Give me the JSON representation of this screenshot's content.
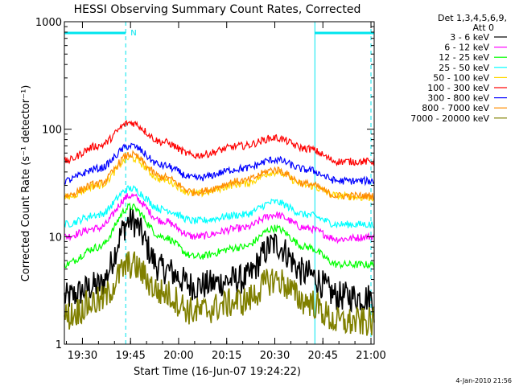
{
  "chart_data": {
    "type": "line",
    "title": "HESSI Observing Summary Count Rates, Corrected",
    "xlabel": "Start Time (16-Jun-07 19:24:22)",
    "ylabel": "Corrected Count Rate (s⁻¹ detector⁻¹)",
    "ylim": [
      1,
      1000
    ],
    "yscale": "log",
    "xlim": [
      "19:24:22",
      "21:01:00"
    ],
    "x_ticks": [
      "19:30",
      "19:45",
      "20:00",
      "20:15",
      "20:30",
      "20:45",
      "21:00"
    ],
    "y_ticks": [
      "1",
      "10",
      "100",
      "1000"
    ],
    "legend_header": [
      "Det 1,3,4,5,6,9,",
      "Att 0"
    ],
    "legend_position": "right",
    "timestamp": "4-Jan-2010 21:56",
    "night_marker_label": "N",
    "night_intervals": [
      [
        "19:24:22",
        "19:43:30"
      ],
      [
        "20:42:30",
        "21:01:00"
      ]
    ],
    "vertical_markers": [
      "19:24:22",
      "19:43:30",
      "20:42:30",
      "21:00:00"
    ],
    "series": [
      {
        "name": "3 - 6 keV",
        "color": "#000000",
        "points": [
          [
            "19:24",
            "2.7"
          ],
          [
            "19:35",
            "3.5"
          ],
          [
            "19:45",
            "14"
          ],
          [
            "19:55",
            "5"
          ],
          [
            "20:05",
            "3.5"
          ],
          [
            "20:20",
            "4"
          ],
          [
            "20:30",
            "8.5"
          ],
          [
            "20:40",
            "4.5"
          ],
          [
            "20:50",
            "2.8"
          ],
          [
            "21:00",
            "2.7"
          ]
        ]
      },
      {
        "name": "6 - 12 keV",
        "color": "#ff00ff",
        "points": [
          [
            "19:24",
            "10"
          ],
          [
            "19:35",
            "12"
          ],
          [
            "19:45",
            "24"
          ],
          [
            "19:55",
            "14"
          ],
          [
            "20:05",
            "10"
          ],
          [
            "20:20",
            "12"
          ],
          [
            "20:30",
            "16"
          ],
          [
            "20:40",
            "12"
          ],
          [
            "20:50",
            "9.5"
          ],
          [
            "21:00",
            "10"
          ]
        ]
      },
      {
        "name": "12 - 25 keV",
        "color": "#00ff00",
        "points": [
          [
            "19:24",
            "5.5"
          ],
          [
            "19:35",
            "8"
          ],
          [
            "19:45",
            "19"
          ],
          [
            "19:55",
            "10"
          ],
          [
            "20:05",
            "6.5"
          ],
          [
            "20:20",
            "8"
          ],
          [
            "20:30",
            "12"
          ],
          [
            "20:40",
            "8"
          ],
          [
            "20:50",
            "5.5"
          ],
          [
            "21:00",
            "5.5"
          ]
        ]
      },
      {
        "name": "25 - 50 keV",
        "color": "#00ffff",
        "points": [
          [
            "19:24",
            "13"
          ],
          [
            "19:35",
            "16"
          ],
          [
            "19:45",
            "28"
          ],
          [
            "19:55",
            "18"
          ],
          [
            "20:05",
            "14"
          ],
          [
            "20:20",
            "16"
          ],
          [
            "20:30",
            "21"
          ],
          [
            "20:40",
            "16"
          ],
          [
            "20:50",
            "13"
          ],
          [
            "21:00",
            "13"
          ]
        ]
      },
      {
        "name": "50 - 100 keV",
        "color": "#ffd700",
        "points": [
          [
            "19:24",
            "23"
          ],
          [
            "19:35",
            "30"
          ],
          [
            "19:45",
            "54"
          ],
          [
            "19:55",
            "34"
          ],
          [
            "20:05",
            "25"
          ],
          [
            "20:20",
            "31"
          ],
          [
            "20:30",
            "40"
          ],
          [
            "20:40",
            "30"
          ],
          [
            "20:50",
            "24"
          ],
          [
            "21:00",
            "23"
          ]
        ]
      },
      {
        "name": "100 - 300 keV",
        "color": "#ff0000",
        "points": [
          [
            "19:24",
            "50"
          ],
          [
            "19:35",
            "70"
          ],
          [
            "19:45",
            "115"
          ],
          [
            "19:55",
            "76"
          ],
          [
            "20:05",
            "57"
          ],
          [
            "20:20",
            "70"
          ],
          [
            "20:30",
            "83"
          ],
          [
            "20:40",
            "66"
          ],
          [
            "20:50",
            "50"
          ],
          [
            "21:00",
            "50"
          ]
        ]
      },
      {
        "name": "300 - 800 keV",
        "color": "#0000ff",
        "points": [
          [
            "19:24",
            "33"
          ],
          [
            "19:35",
            "43"
          ],
          [
            "19:45",
            "70"
          ],
          [
            "19:55",
            "46"
          ],
          [
            "20:05",
            "35"
          ],
          [
            "20:20",
            "43"
          ],
          [
            "20:30",
            "52"
          ],
          [
            "20:40",
            "42"
          ],
          [
            "20:50",
            "33"
          ],
          [
            "21:00",
            "33"
          ]
        ]
      },
      {
        "name": "800 - 7000 keV",
        "color": "#ff8c00",
        "points": [
          [
            "19:24",
            "24"
          ],
          [
            "19:35",
            "31"
          ],
          [
            "19:45",
            "58"
          ],
          [
            "19:55",
            "36"
          ],
          [
            "20:05",
            "26"
          ],
          [
            "20:20",
            "33"
          ],
          [
            "20:30",
            "42"
          ],
          [
            "20:40",
            "31"
          ],
          [
            "20:50",
            "24"
          ],
          [
            "21:00",
            "24"
          ]
        ]
      },
      {
        "name": "7000 - 20000 keV",
        "color": "#808000",
        "points": [
          [
            "19:24",
            "1.8"
          ],
          [
            "19:35",
            "2.5"
          ],
          [
            "19:45",
            "5.5"
          ],
          [
            "19:55",
            "3"
          ],
          [
            "20:05",
            "2"
          ],
          [
            "20:20",
            "2.5"
          ],
          [
            "20:30",
            "4"
          ],
          [
            "20:40",
            "2.5"
          ],
          [
            "20:50",
            "1.6"
          ],
          [
            "21:00",
            "1.6"
          ]
        ]
      }
    ]
  }
}
